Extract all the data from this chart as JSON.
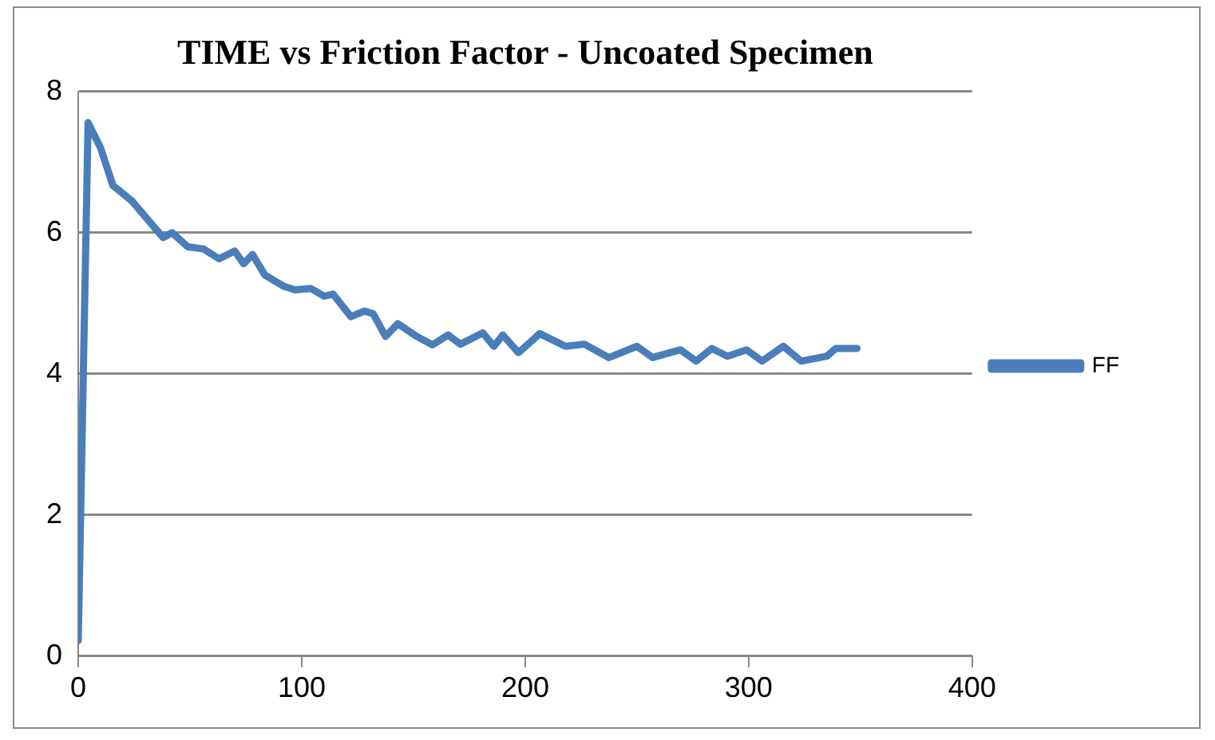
{
  "chart_data": {
    "type": "line",
    "title": "TIME vs Friction Factor - Uncoated Specimen",
    "xlim": [
      0,
      400
    ],
    "xticks": [
      0,
      100,
      200,
      300,
      400
    ],
    "ylim": [
      0,
      8
    ],
    "yticks": [
      0,
      2,
      4,
      6,
      8
    ],
    "grid": "y",
    "legend": "right",
    "marker": "none",
    "line_style": "solid",
    "series": [
      {
        "name": "FF",
        "color": "#4a7ebb",
        "x": [
          0,
          4.4,
          10,
          15.5,
          24,
          38,
          42,
          49,
          56,
          63,
          70,
          74,
          78,
          83.5,
          92,
          97,
          104,
          110,
          114,
          122,
          128,
          132,
          137.5,
          143,
          151.5,
          158.5,
          165.5,
          171,
          181,
          186,
          190,
          197,
          206.5,
          218,
          226.5,
          237.5,
          250,
          257,
          269.5,
          276.5,
          283.5,
          290.5,
          299,
          306,
          315.5,
          323.5,
          335,
          339,
          348.5
        ],
        "values": [
          0.22,
          7.56,
          7.2,
          6.67,
          6.45,
          5.93,
          6.0,
          5.8,
          5.77,
          5.63,
          5.74,
          5.56,
          5.69,
          5.4,
          5.24,
          5.19,
          5.21,
          5.1,
          5.13,
          4.81,
          4.89,
          4.85,
          4.53,
          4.71,
          4.53,
          4.41,
          4.55,
          4.42,
          4.58,
          4.39,
          4.55,
          4.3,
          4.57,
          4.39,
          4.42,
          4.23,
          4.39,
          4.23,
          4.34,
          4.18,
          4.36,
          4.25,
          4.34,
          4.18,
          4.39,
          4.18,
          4.25,
          4.36,
          4.36
        ]
      }
    ]
  }
}
